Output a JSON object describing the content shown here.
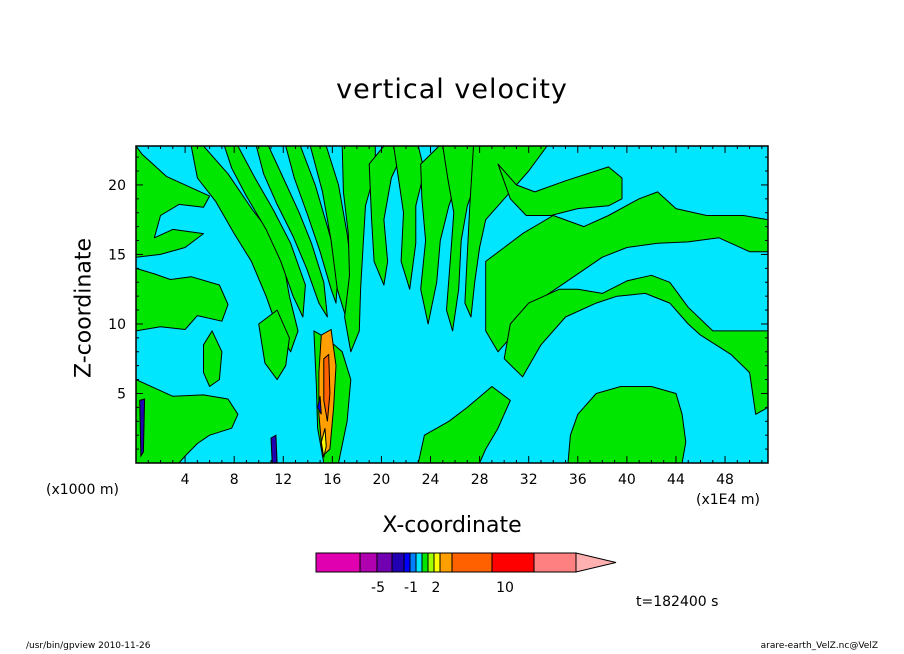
{
  "title": "vertical velocity",
  "footer": {
    "left": "/usr/bin/gpview  2010-11-26",
    "right": "arare-earth_VelZ.nc@VelZ"
  },
  "time_label": "t=182400 s",
  "x_unit_label": "(x1000 m)",
  "x_scale_label": "(x1E4 m)",
  "colors": {
    "positive_weak": "#00e600",
    "negative_weak": "#00e6ff",
    "contour_line": "#000000",
    "frame": "#000000"
  },
  "chart_data": {
    "type": "heatmap",
    "title": "vertical velocity",
    "xlabel": "X-coordinate",
    "ylabel": "Z-coordinate",
    "xlim": [
      0,
      51.5
    ],
    "ylim": [
      0,
      22.8
    ],
    "x_ticks": [
      4,
      8,
      12,
      16,
      20,
      24,
      28,
      32,
      36,
      40,
      44,
      48
    ],
    "y_ticks": [
      5,
      10,
      15,
      20
    ],
    "grid": false,
    "field_regions": [
      {
        "value": "positive",
        "x_range": [
          0,
          6
        ],
        "z_range": [
          12,
          20
        ],
        "desc": "upper-left green"
      },
      {
        "value": "positive",
        "x_range": [
          0,
          9
        ],
        "z_range": [
          0,
          5
        ],
        "desc": "lower-left green"
      },
      {
        "value": "positive",
        "x_range": [
          8,
          28
        ],
        "z_range": [
          5,
          22.8
        ],
        "desc": "tilted green bands"
      },
      {
        "value": "positive",
        "x_range": [
          30,
          51.5
        ],
        "z_range": [
          9,
          17
        ],
        "desc": "arched green band"
      },
      {
        "value": "positive",
        "x_range": [
          35,
          44
        ],
        "z_range": [
          0,
          5
        ],
        "desc": "lower-right green"
      },
      {
        "value": "positive",
        "x_range": [
          22,
          32
        ],
        "z_range": [
          0,
          5
        ],
        "desc": "lower-middle green"
      }
    ],
    "colorbar": {
      "colors": [
        "#e000b0",
        "#b000b0",
        "#7000b0",
        "#2000b0",
        "#0000ff",
        "#0080ff",
        "#00e6ff",
        "#00e600",
        "#a0ff00",
        "#ffff00",
        "#ffa000",
        "#ff6000",
        "#ff0000",
        "#ff8080",
        "#ffb0b0"
      ],
      "labels": [
        "-5",
        "-1",
        "2",
        "10"
      ]
    }
  }
}
